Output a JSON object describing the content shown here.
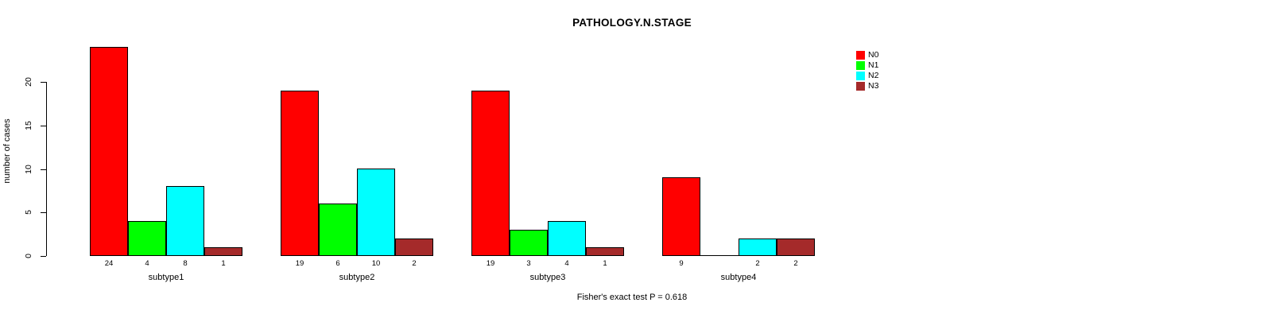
{
  "chart_data": {
    "type": "bar",
    "title": "PATHOLOGY.N.STAGE",
    "ylabel": "number of cases",
    "xlabel": "",
    "footer": "Fisher's exact test P = 0.618",
    "categories": [
      "subtype1",
      "subtype2",
      "subtype3",
      "subtype4"
    ],
    "series": [
      {
        "name": "N0",
        "color": "#FF0000",
        "values": [
          24,
          19,
          19,
          9
        ]
      },
      {
        "name": "N1",
        "color": "#00FF00",
        "values": [
          4,
          6,
          3,
          0
        ]
      },
      {
        "name": "N2",
        "color": "#00FFFF",
        "values": [
          8,
          10,
          4,
          2
        ]
      },
      {
        "name": "N3",
        "color": "#A52A2A",
        "values": [
          1,
          2,
          1,
          2
        ]
      }
    ],
    "bar_labels": [
      [
        "24",
        "4",
        "8",
        "1"
      ],
      [
        "19",
        "6",
        "10",
        "2"
      ],
      [
        "19",
        "3",
        "4",
        "1"
      ],
      [
        "9",
        "",
        "2",
        "2"
      ]
    ],
    "yticks": [
      0,
      5,
      10,
      15,
      20
    ],
    "ylim": [
      0,
      24
    ],
    "grid": false,
    "legend_position": "top-right",
    "bar_outline_color": "#000000",
    "background_color": "#FFFFFF"
  }
}
